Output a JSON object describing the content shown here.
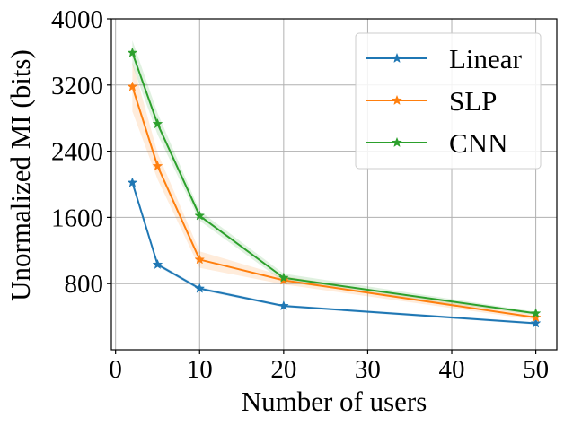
{
  "chart_data": {
    "type": "line",
    "title": "",
    "xlabel": "Number of users",
    "ylabel": "Unormalized MI (bits)",
    "xlim": [
      -0.5,
      52.5
    ],
    "ylim": [
      0,
      4000
    ],
    "xticks": [
      0,
      10,
      20,
      30,
      40,
      50
    ],
    "yticks": [
      800,
      1600,
      2400,
      3200,
      4000
    ],
    "xtick_labels": [
      "0",
      "10",
      "20",
      "30",
      "40",
      "50"
    ],
    "ytick_labels": [
      "800",
      "1600",
      "2400",
      "3200",
      "4000"
    ],
    "grid": true,
    "legend_position": "top-right",
    "x": [
      2,
      5,
      10,
      20,
      50
    ],
    "series": [
      {
        "name": "Linear",
        "color": "#1f77b4",
        "marker": "star",
        "values": [
          2020,
          1030,
          740,
          530,
          320
        ],
        "lower": [
          2000,
          1010,
          720,
          515,
          305
        ],
        "upper": [
          2040,
          1050,
          760,
          545,
          335
        ]
      },
      {
        "name": "SLP",
        "color": "#ff7f0e",
        "marker": "star",
        "values": [
          3180,
          2220,
          1090,
          840,
          390
        ],
        "lower": [
          2880,
          2060,
          990,
          790,
          360
        ],
        "upper": [
          3480,
          2380,
          1190,
          890,
          420
        ]
      },
      {
        "name": "CNN",
        "color": "#2ca02c",
        "marker": "star",
        "values": [
          3590,
          2730,
          1620,
          870,
          440
        ],
        "lower": [
          3440,
          2600,
          1560,
          820,
          420
        ],
        "upper": [
          3740,
          2860,
          1680,
          920,
          460
        ]
      }
    ]
  }
}
